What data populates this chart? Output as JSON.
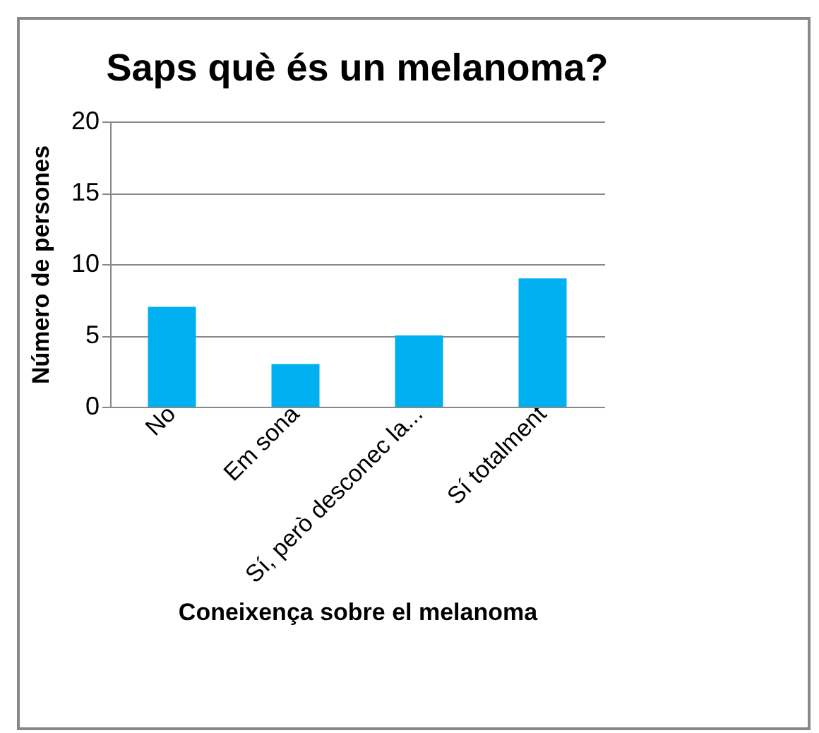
{
  "chart_data": {
    "type": "bar",
    "title": "Saps què és un melanoma?",
    "xlabel": "Coneixença sobre el melanoma",
    "ylabel": "Número de persones",
    "categories": [
      "No",
      "Em sona",
      "Sí, però desconec la...",
      "Sí totalment"
    ],
    "values": [
      7,
      3,
      5,
      9
    ],
    "color": "#00b0f0",
    "ylim": [
      0,
      20
    ],
    "yticks": [
      0,
      5,
      10,
      15,
      20
    ],
    "grid": "y"
  }
}
